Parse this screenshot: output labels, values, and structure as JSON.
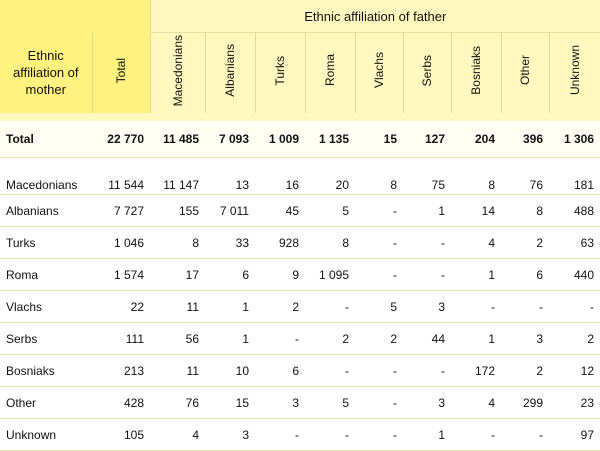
{
  "header": {
    "father_title": "Ethnic affiliation of father",
    "mother_label_lines": [
      "Ethnic",
      "affiliation of",
      "mother"
    ],
    "columns": [
      "Total",
      "Macedonians",
      "Albanians",
      "Turks",
      "Roma",
      "Vlachs",
      "Serbs",
      "Bosniaks",
      "Other",
      "Unknown"
    ]
  },
  "rows": [
    {
      "label": "Total",
      "values": [
        "22 770",
        "11 485",
        "7 093",
        "1 009",
        "1 135",
        "15",
        "127",
        "204",
        "396",
        "1 306"
      ]
    },
    {
      "label": "Macedonians",
      "values": [
        "11 544",
        "11 147",
        "13",
        "16",
        "20",
        "8",
        "75",
        "8",
        "76",
        "181"
      ]
    },
    {
      "label": "Albanians",
      "values": [
        "7 727",
        "155",
        "7 011",
        "45",
        "5",
        "-",
        "1",
        "14",
        "8",
        "488"
      ]
    },
    {
      "label": "Turks",
      "values": [
        "1 046",
        "8",
        "33",
        "928",
        "8",
        "-",
        "-",
        "4",
        "2",
        "63"
      ]
    },
    {
      "label": "Roma",
      "values": [
        "1 574",
        "17",
        "6",
        "9",
        "1 095",
        "-",
        "-",
        "1",
        "6",
        "440"
      ]
    },
    {
      "label": "Vlachs",
      "values": [
        "22",
        "11",
        "1",
        "2",
        "-",
        "5",
        "3",
        "-",
        "-",
        "-"
      ]
    },
    {
      "label": "Serbs",
      "values": [
        "111",
        "56",
        "1",
        "-",
        "2",
        "2",
        "44",
        "1",
        "3",
        "2"
      ]
    },
    {
      "label": "Bosniaks",
      "values": [
        "213",
        "11",
        "10",
        "6",
        "-",
        "-",
        "-",
        "172",
        "2",
        "12"
      ]
    },
    {
      "label": "Other",
      "values": [
        "428",
        "76",
        "15",
        "3",
        "5",
        "-",
        "3",
        "4",
        "299",
        "23"
      ]
    },
    {
      "label": "Unknown",
      "values": [
        "105",
        "4",
        "3",
        "-",
        "-",
        "-",
        "1",
        "-",
        "-",
        "97"
      ]
    }
  ],
  "colors": {
    "header_dark": "#fff27e",
    "header_light": "#fff9bf",
    "row_rule": "#ece3a8"
  }
}
